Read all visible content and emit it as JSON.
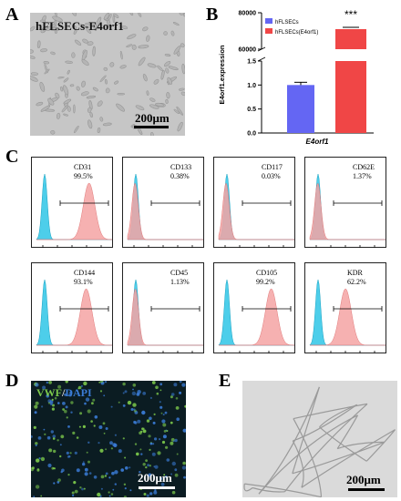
{
  "panel_a": {
    "letter": "A",
    "title": "hFLSECs-E4orf1",
    "scale_bar": "200μm"
  },
  "panel_b": {
    "letter": "B",
    "significance": "***",
    "xtick": "E4orf1"
  },
  "chart_data": {
    "type": "bar",
    "title": "",
    "xlabel": "",
    "ylabel": "E4orf1.expression",
    "categories": [
      "E4orf1"
    ],
    "series": [
      {
        "name": "hFLSECs",
        "values": [
          1.0
        ],
        "color": "#6466f3"
      },
      {
        "name": "hFLSECs(E4orf1)",
        "values": [
          71000
        ],
        "color": "#f04646"
      }
    ],
    "axis_lower": {
      "ylim": [
        0,
        1.5
      ],
      "ticks": [
        "0.0",
        "0.5",
        "1.0",
        "1.5"
      ]
    },
    "axis_upper": {
      "ylim": [
        60000,
        80000
      ],
      "ticks": [
        "60000",
        "80000"
      ]
    },
    "axis_break": true,
    "legend_position": "top-left"
  },
  "panel_c": {
    "letter": "C",
    "plots": [
      {
        "marker": "CD31",
        "pct": "99.5%",
        "pos": 0.995
      },
      {
        "marker": "CD133",
        "pct": "0.38%",
        "pos": 0.0038
      },
      {
        "marker": "CD117",
        "pct": "0.03%",
        "pos": 0.0003
      },
      {
        "marker": "CD62E",
        "pct": "1.37%",
        "pos": 0.0137
      },
      {
        "marker": "CD144",
        "pct": "93.1%",
        "pos": 0.931
      },
      {
        "marker": "CD45",
        "pct": "1.13%",
        "pos": 0.0113
      },
      {
        "marker": "CD105",
        "pct": "99.2%",
        "pos": 0.992
      },
      {
        "marker": "KDR",
        "pct": "62.2%",
        "pos": 0.622
      }
    ],
    "isotype_color": "#2ec5e6",
    "stain_color": "#f4a3a3"
  },
  "panel_d": {
    "letter": "D",
    "label_vwf": "VWF",
    "label_sep": "/",
    "label_dapi": "DAPI",
    "scale_bar": "200μm",
    "vwf_color": "#7cc94b",
    "dapi_color": "#3a7bd5"
  },
  "panel_e": {
    "letter": "E",
    "scale_bar": "200μm"
  }
}
